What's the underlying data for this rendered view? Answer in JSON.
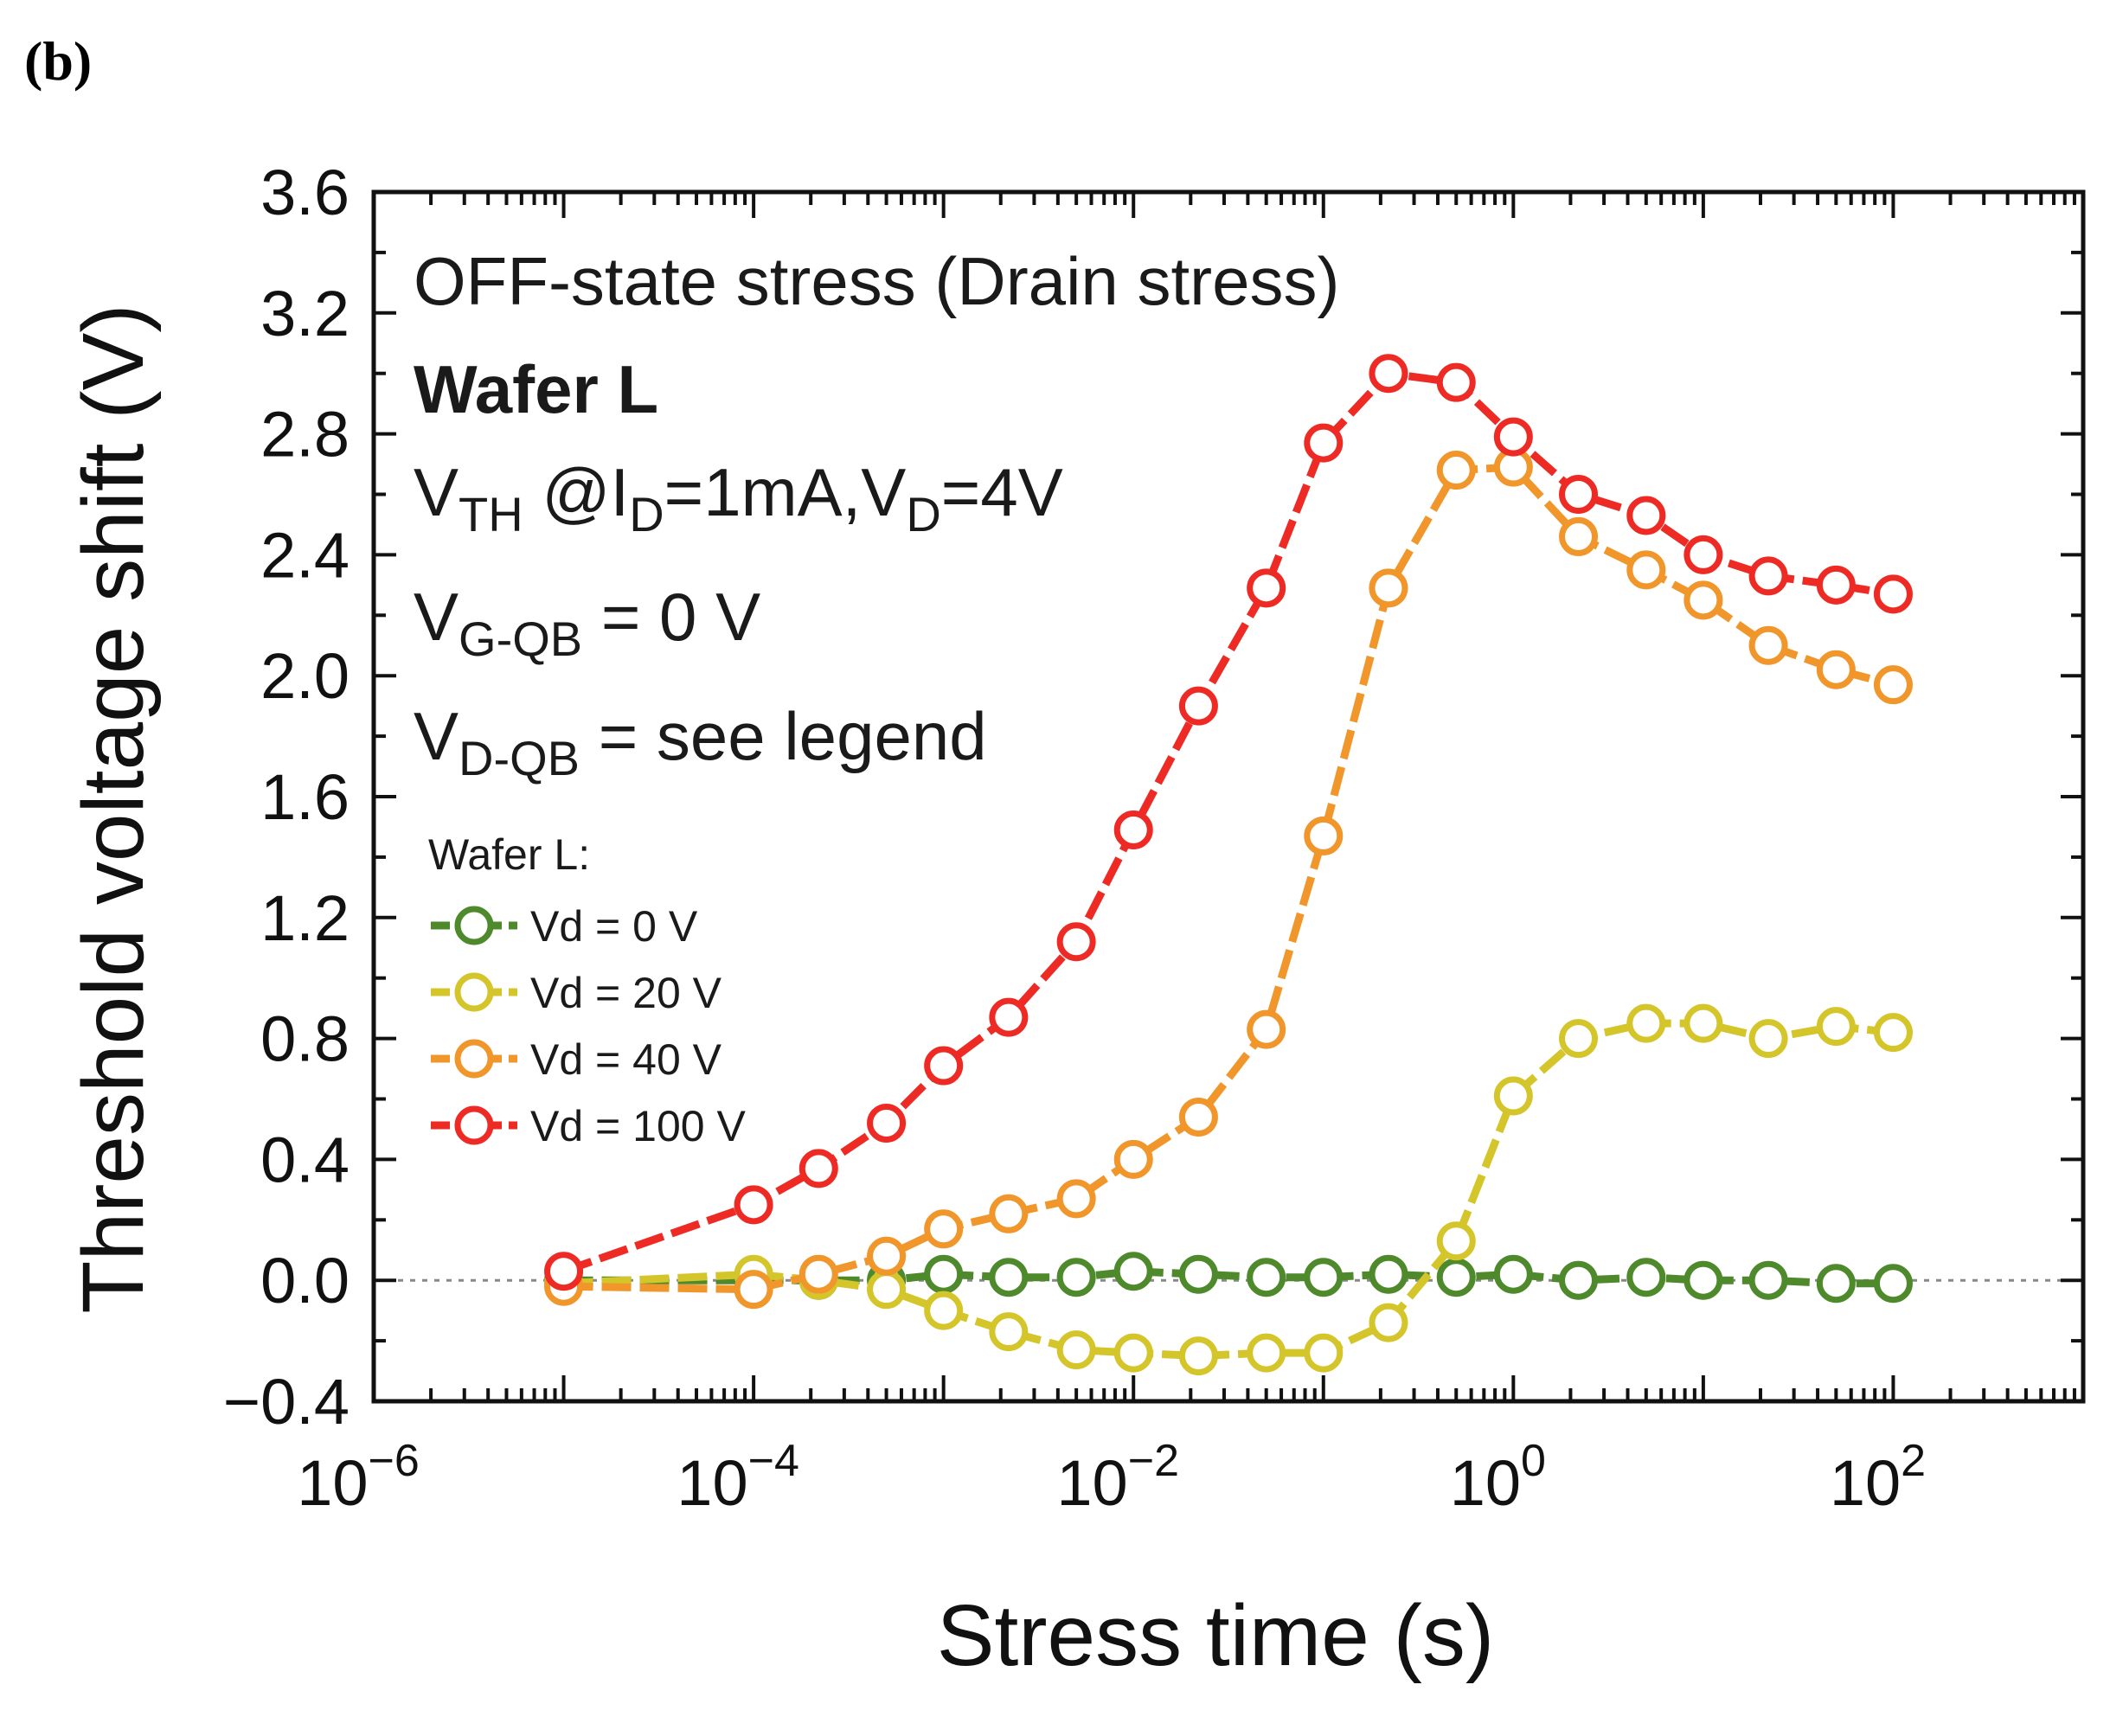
{
  "panel_label": "(b)",
  "chart_data": {
    "type": "line",
    "x_scale": "log",
    "xlabel": "Stress time (s)",
    "ylabel": "Threshold voltage shift (V)",
    "xlim": [
      1e-06,
      1000
    ],
    "ylim": [
      -0.4,
      3.6
    ],
    "x_tick_labels": [
      {
        "base": "10",
        "exp": "−6",
        "x": 1e-06
      },
      {
        "base": "10",
        "exp": "−4",
        "x": 0.0001
      },
      {
        "base": "10",
        "exp": "−2",
        "x": 0.01
      },
      {
        "base": "10",
        "exp": "0",
        "x": 1
      },
      {
        "base": "10",
        "exp": "2",
        "x": 100
      }
    ],
    "y_ticks": [
      -0.4,
      0.0,
      0.4,
      0.8,
      1.2,
      1.6,
      2.0,
      2.4,
      2.8,
      3.2,
      3.6
    ],
    "y_tick_labels": [
      "−0.4",
      "0.0",
      "0.4",
      "0.8",
      "1.2",
      "1.6",
      "2.0",
      "2.4",
      "2.8",
      "3.2",
      "3.6"
    ],
    "zero_line": true,
    "annotations": {
      "line1": "OFF-state stress (Drain stress)",
      "line2": "Wafer L",
      "line3": {
        "v": "V",
        "v_sub": "TH",
        "mid": " @I",
        "i_sub": "D",
        "rest": "=1mA,V",
        "d_sub": "D",
        "end": "=4V"
      },
      "line4": {
        "v": "V",
        "v_sub": "G-QB",
        "rest": " = 0 V"
      },
      "line5": {
        "v": "V",
        "v_sub": "D-QB",
        "rest": " = see legend"
      }
    },
    "legend": {
      "title": "Wafer L:",
      "position": "center-left"
    },
    "series": [
      {
        "name": "Vd = 0 V",
        "color": "#4e8a2b",
        "x": [
          1e-05,
          0.0001,
          0.00022,
          0.0005,
          0.001,
          0.0022,
          0.005,
          0.01,
          0.022,
          0.05,
          0.1,
          0.22,
          0.5,
          1,
          2.2,
          5,
          10,
          22,
          50,
          100
        ],
        "y": [
          0.0,
          0.0,
          0.0,
          0.0,
          0.02,
          0.01,
          0.01,
          0.03,
          0.02,
          0.01,
          0.01,
          0.02,
          0.01,
          0.02,
          0.0,
          0.01,
          0.0,
          0.0,
          -0.01,
          -0.01
        ]
      },
      {
        "name": "Vd = 20 V",
        "color": "#d4c52a",
        "x": [
          1e-05,
          0.0001,
          0.00022,
          0.0005,
          0.001,
          0.0022,
          0.005,
          0.01,
          0.022,
          0.05,
          0.1,
          0.22,
          0.5,
          1,
          2.2,
          5,
          10,
          22,
          50,
          100
        ],
        "y": [
          -0.01,
          0.02,
          0.0,
          -0.03,
          -0.1,
          -0.17,
          -0.23,
          -0.24,
          -0.25,
          -0.24,
          -0.24,
          -0.14,
          0.13,
          0.61,
          0.8,
          0.85,
          0.85,
          0.8,
          0.84,
          0.82
        ]
      },
      {
        "name": "Vd = 40 V",
        "color": "#f0962a",
        "x": [
          1e-05,
          0.0001,
          0.00022,
          0.0005,
          0.001,
          0.0022,
          0.005,
          0.01,
          0.022,
          0.05,
          0.1,
          0.22,
          0.5,
          1,
          2.2,
          5,
          10,
          22,
          50,
          100
        ],
        "y": [
          -0.02,
          -0.03,
          0.02,
          0.08,
          0.17,
          0.22,
          0.27,
          0.4,
          0.54,
          0.83,
          1.47,
          2.29,
          2.68,
          2.69,
          2.46,
          2.35,
          2.25,
          2.1,
          2.02,
          1.97
        ]
      },
      {
        "name": "Vd = 100 V",
        "color": "#ee2a24",
        "x": [
          1e-05,
          0.0001,
          0.00022,
          0.0005,
          0.001,
          0.0022,
          0.005,
          0.01,
          0.022,
          0.05,
          0.1,
          0.22,
          0.5,
          1,
          2.2,
          5,
          10,
          22,
          50,
          100
        ],
        "y": [
          0.03,
          0.25,
          0.37,
          0.52,
          0.71,
          0.87,
          1.12,
          1.49,
          1.9,
          2.29,
          2.77,
          3.0,
          2.97,
          2.79,
          2.6,
          2.53,
          2.4,
          2.33,
          2.3,
          2.27
        ]
      }
    ]
  }
}
